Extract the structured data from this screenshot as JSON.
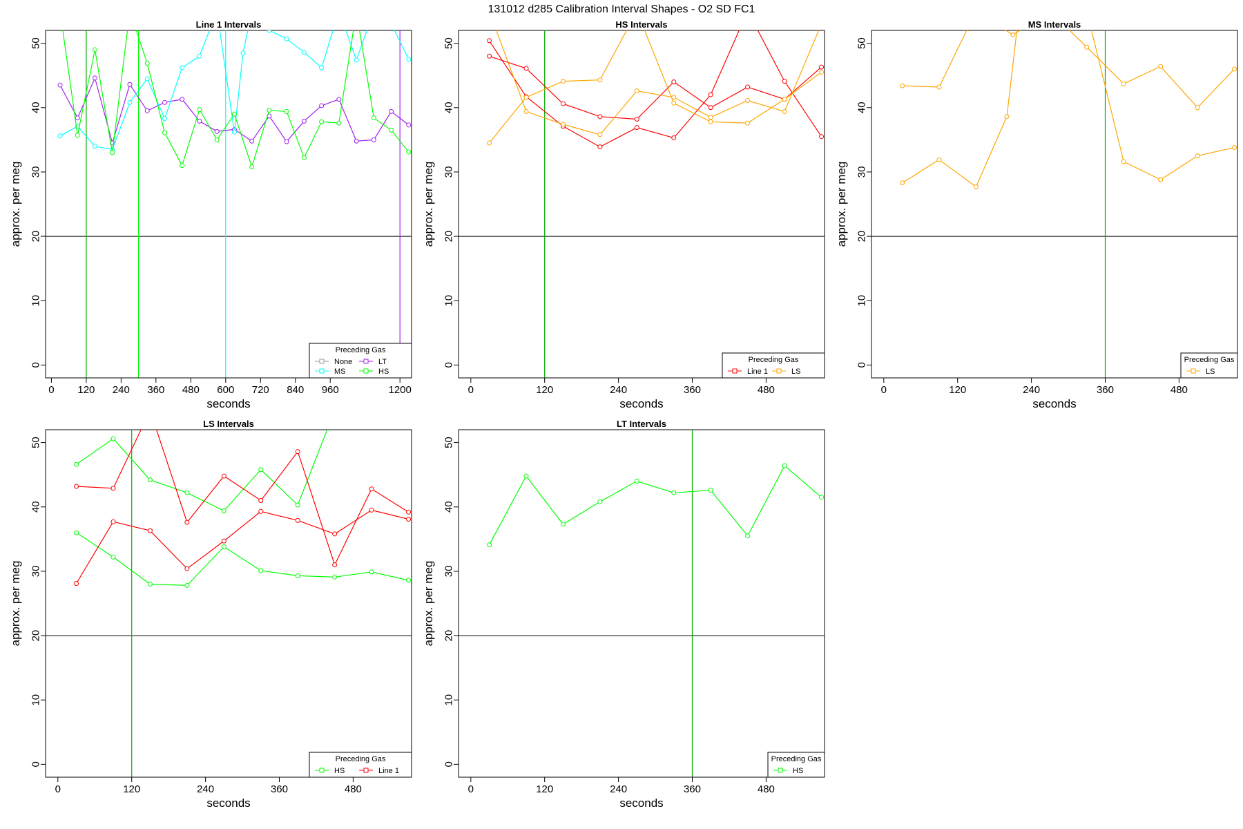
{
  "page": {
    "title": "131012   d285   Calibration Interval Shapes - O2 SD FC1"
  },
  "colors": {
    "None": "#999999",
    "Line 1": "#ff0000",
    "LT": "#a020f0",
    "MS": "#00ffff",
    "HS": "#00ff00",
    "LS": "#ffa500"
  },
  "chart_data": [
    {
      "type": "line",
      "title": "Line 1 Intervals",
      "xlabel": "seconds",
      "ylabel": "approx. per meg",
      "xlim": [
        -20,
        1240
      ],
      "ylim": [
        -2,
        52
      ],
      "xticks": [
        0,
        120,
        240,
        360,
        480,
        600,
        720,
        840,
        960,
        1200
      ],
      "yticks": [
        0,
        10,
        20,
        30,
        40,
        50
      ],
      "hline": 20,
      "vlines": [
        {
          "x": 120,
          "color": "#00aa00"
        },
        {
          "x": 300,
          "color": "#00ff00"
        },
        {
          "x": 600,
          "color": "#00ffff"
        },
        {
          "x": 1200,
          "color": "#a020f0"
        }
      ],
      "legend": {
        "title": "Preceding Gas",
        "columns": 2,
        "entries": [
          "None",
          "LT",
          "MS",
          "HS"
        ]
      },
      "series": [
        {
          "name": "LT",
          "color": "#a020f0",
          "points": [
            [
              30,
              43.5
            ],
            [
              90,
              38.4
            ],
            [
              150,
              44.6
            ],
            [
              210,
              34.5
            ],
            [
              270,
              43.6
            ],
            [
              330,
              39.5
            ],
            [
              390,
              40.8
            ],
            [
              450,
              41.3
            ],
            [
              510,
              37.9
            ],
            [
              570,
              36.3
            ],
            [
              630,
              36.6
            ],
            [
              690,
              34.8
            ],
            [
              750,
              38.7
            ],
            [
              810,
              34.7
            ],
            [
              870,
              37.9
            ],
            [
              930,
              40.3
            ],
            [
              990,
              41.3
            ],
            [
              1050,
              34.8
            ],
            [
              1110,
              35.0
            ],
            [
              1170,
              39.4
            ],
            [
              1230,
              37.3
            ]
          ]
        },
        {
          "name": "MS",
          "color": "#00ffff",
          "points": [
            [
              30,
              35.6
            ],
            [
              90,
              37.1
            ],
            [
              150,
              34.0
            ],
            [
              210,
              33.5
            ],
            [
              270,
              40.8
            ],
            [
              330,
              44.5
            ],
            [
              390,
              38.3
            ],
            [
              450,
              46.2
            ],
            [
              510,
              48.0
            ],
            [
              570,
              55.0
            ],
            [
              630,
              36.2
            ],
            [
              660,
              48.5
            ],
            [
              690,
              55.0
            ],
            [
              750,
              52.0
            ],
            [
              810,
              50.7
            ],
            [
              870,
              48.6
            ],
            [
              930,
              46.2
            ],
            [
              990,
              55.0
            ],
            [
              1050,
              47.4
            ],
            [
              1110,
              55.0
            ],
            [
              1170,
              53.0
            ],
            [
              1230,
              47.5
            ]
          ]
        },
        {
          "name": "HS",
          "color": "#00ff00",
          "points": [
            [
              30,
              55.0
            ],
            [
              90,
              35.7
            ],
            [
              150,
              49.0
            ],
            [
              210,
              33.0
            ],
            [
              270,
              55.0
            ],
            [
              330,
              46.9
            ],
            [
              390,
              36.1
            ],
            [
              450,
              31.0
            ],
            [
              510,
              39.7
            ],
            [
              570,
              35.0
            ],
            [
              630,
              39.0
            ],
            [
              690,
              30.8
            ],
            [
              750,
              39.6
            ],
            [
              810,
              39.4
            ],
            [
              870,
              32.2
            ],
            [
              930,
              37.8
            ],
            [
              990,
              37.6
            ],
            [
              1050,
              55.0
            ],
            [
              1110,
              38.4
            ],
            [
              1170,
              36.5
            ],
            [
              1230,
              33.1
            ]
          ]
        }
      ]
    },
    {
      "type": "line",
      "title": "HS Intervals",
      "xlabel": "seconds",
      "ylabel": "approx. per meg",
      "xlim": [
        -20,
        575
      ],
      "ylim": [
        -2,
        52
      ],
      "xticks": [
        0,
        120,
        240,
        360,
        480
      ],
      "yticks": [
        0,
        10,
        20,
        30,
        40,
        50
      ],
      "hline": 20,
      "vlines": [
        {
          "x": 120,
          "color": "#00aa00"
        }
      ],
      "legend": {
        "title": "Preceding Gas",
        "columns": 2,
        "entries": [
          "Line 1",
          "LS"
        ]
      },
      "series": [
        {
          "name": "Line 1",
          "color": "#ff0000",
          "points": [
            [
              30,
              50.4
            ],
            [
              90,
              41.7
            ],
            [
              150,
              37.1
            ],
            [
              210,
              33.9
            ],
            [
              270,
              36.9
            ],
            [
              330,
              35.3
            ],
            [
              390,
              42.0
            ],
            [
              450,
              55.0
            ],
            [
              510,
              44.1
            ],
            [
              570,
              35.5
            ]
          ]
        },
        {
          "name": "Line 1",
          "color": "#ff0000",
          "points": [
            [
              30,
              48.0
            ],
            [
              90,
              46.1
            ],
            [
              150,
              40.6
            ],
            [
              210,
              38.6
            ],
            [
              270,
              38.2
            ],
            [
              330,
              44.0
            ],
            [
              390,
              40.0
            ],
            [
              450,
              43.2
            ],
            [
              510,
              41.3
            ],
            [
              570,
              46.3
            ]
          ]
        },
        {
          "name": "LS",
          "color": "#ffa500",
          "points": [
            [
              30,
              34.5
            ],
            [
              90,
              41.6
            ],
            [
              150,
              44.1
            ],
            [
              210,
              44.3
            ],
            [
              270,
              55.0
            ],
            [
              330,
              40.7
            ],
            [
              390,
              37.8
            ],
            [
              450,
              37.6
            ],
            [
              510,
              41.3
            ],
            [
              570,
              45.5
            ]
          ]
        },
        {
          "name": "LS",
          "color": "#ffa500",
          "points": [
            [
              30,
              55.0
            ],
            [
              90,
              39.4
            ],
            [
              150,
              37.4
            ],
            [
              210,
              35.8
            ],
            [
              270,
              42.6
            ],
            [
              330,
              41.6
            ],
            [
              390,
              38.5
            ],
            [
              450,
              41.1
            ],
            [
              510,
              39.4
            ],
            [
              570,
              53.0
            ]
          ]
        }
      ]
    },
    {
      "type": "line",
      "title": "MS Intervals",
      "xlabel": "seconds",
      "ylabel": "approx. per meg",
      "xlim": [
        -20,
        575
      ],
      "ylim": [
        -2,
        52
      ],
      "xticks": [
        0,
        120,
        240,
        360,
        480
      ],
      "yticks": [
        0,
        10,
        20,
        30,
        40,
        50
      ],
      "hline": 20,
      "vlines": [
        {
          "x": 360,
          "color": "#00aa00"
        }
      ],
      "legend": {
        "title": "Preceding Gas",
        "columns": 1,
        "entries": [
          "LS"
        ]
      },
      "series": [
        {
          "name": "LS",
          "color": "#ffa500",
          "points": [
            [
              30,
              43.4
            ],
            [
              90,
              43.2
            ],
            [
              150,
              55.0
            ],
            [
              210,
              51.3
            ],
            [
              270,
              55.0
            ],
            [
              330,
              49.4
            ],
            [
              390,
              43.7
            ],
            [
              450,
              46.4
            ],
            [
              510,
              40.0
            ],
            [
              570,
              46.0
            ]
          ]
        },
        {
          "name": "LS",
          "color": "#ffa500",
          "points": [
            [
              30,
              28.3
            ],
            [
              90,
              31.9
            ],
            [
              150,
              27.7
            ],
            [
              200,
              38.6
            ],
            [
              220,
              55.0
            ],
            [
              270,
              55.0
            ],
            [
              330,
              55.0
            ],
            [
              390,
              31.6
            ],
            [
              450,
              28.8
            ],
            [
              510,
              32.5
            ],
            [
              570,
              33.8
            ]
          ]
        }
      ]
    },
    {
      "type": "line",
      "title": "LS Intervals",
      "xlabel": "seconds",
      "ylabel": "approx. per meg",
      "xlim": [
        -20,
        575
      ],
      "ylim": [
        -2,
        52
      ],
      "xticks": [
        0,
        120,
        240,
        360,
        480
      ],
      "yticks": [
        0,
        10,
        20,
        30,
        40,
        50
      ],
      "hline": 20,
      "vlines": [
        {
          "x": 120,
          "color": "#00aa00"
        }
      ],
      "legend": {
        "title": "Preceding Gas",
        "columns": 2,
        "entries": [
          "HS",
          "Line 1"
        ]
      },
      "series": [
        {
          "name": "HS",
          "color": "#00ff00",
          "points": [
            [
              30,
              46.6
            ],
            [
              90,
              50.6
            ],
            [
              150,
              44.2
            ],
            [
              210,
              42.2
            ],
            [
              270,
              39.4
            ],
            [
              330,
              45.8
            ],
            [
              390,
              40.3
            ],
            [
              450,
              55.0
            ]
          ]
        },
        {
          "name": "HS",
          "color": "#00ff00",
          "points": [
            [
              30,
              36.0
            ],
            [
              90,
              32.2
            ],
            [
              150,
              28.0
            ],
            [
              210,
              27.8
            ],
            [
              270,
              33.8
            ],
            [
              330,
              30.1
            ],
            [
              390,
              29.3
            ],
            [
              450,
              29.1
            ],
            [
              510,
              29.9
            ],
            [
              570,
              28.6
            ]
          ]
        },
        {
          "name": "Line 1",
          "color": "#ff0000",
          "points": [
            [
              30,
              43.2
            ],
            [
              90,
              42.9
            ],
            [
              150,
              55.0
            ],
            [
              210,
              37.6
            ],
            [
              270,
              44.8
            ],
            [
              330,
              41.0
            ],
            [
              390,
              48.6
            ],
            [
              450,
              31.0
            ],
            [
              510,
              42.8
            ],
            [
              570,
              39.2
            ]
          ]
        },
        {
          "name": "Line 1",
          "color": "#ff0000",
          "points": [
            [
              30,
              28.1
            ],
            [
              90,
              37.7
            ],
            [
              150,
              36.3
            ],
            [
              210,
              30.4
            ],
            [
              270,
              34.7
            ],
            [
              330,
              39.3
            ],
            [
              390,
              37.9
            ],
            [
              450,
              35.8
            ],
            [
              510,
              39.5
            ],
            [
              570,
              38.1
            ]
          ]
        }
      ]
    },
    {
      "type": "line",
      "title": "LT Intervals",
      "xlabel": "seconds",
      "ylabel": "approx. per meg",
      "xlim": [
        -20,
        575
      ],
      "ylim": [
        -2,
        52
      ],
      "xticks": [
        0,
        120,
        240,
        360,
        480
      ],
      "yticks": [
        0,
        10,
        20,
        30,
        40,
        50
      ],
      "hline": 20,
      "vlines": [
        {
          "x": 360,
          "color": "#00aa00"
        }
      ],
      "legend": {
        "title": "Preceding Gas",
        "columns": 1,
        "entries": [
          "HS"
        ]
      },
      "series": [
        {
          "name": "HS",
          "color": "#00ff00",
          "points": [
            [
              30,
              34.1
            ],
            [
              90,
              44.8
            ],
            [
              150,
              37.3
            ],
            [
              210,
              40.8
            ],
            [
              270,
              44.0
            ],
            [
              330,
              42.2
            ],
            [
              390,
              42.6
            ],
            [
              450,
              35.5
            ],
            [
              510,
              46.4
            ],
            [
              570,
              41.5
            ]
          ]
        }
      ]
    }
  ]
}
